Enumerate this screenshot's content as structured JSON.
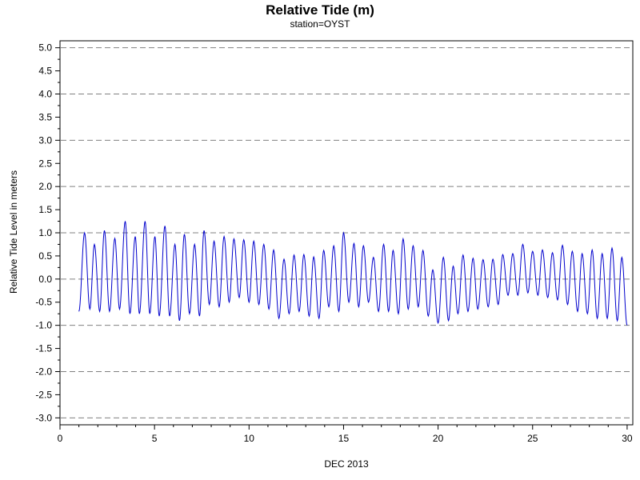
{
  "chart_data": {
    "type": "line",
    "title": "Relative Tide (m)",
    "subtitle": "station=OYST",
    "xlabel": "DEC 2013",
    "ylabel": "Relative Tide Level in meters",
    "xlim": [
      0,
      30.3
    ],
    "ylim": [
      -3.15,
      5.15
    ],
    "x_ticks": [
      0,
      5,
      10,
      15,
      20,
      25,
      30
    ],
    "x_tick_labels": [
      "0",
      "5",
      "10",
      "15",
      "20",
      "25",
      "30"
    ],
    "y_ticks": [
      5.0,
      4.5,
      4.0,
      3.5,
      3.0,
      2.5,
      2.0,
      1.5,
      1.0,
      0.5,
      0.0,
      -0.5,
      -1.0,
      -1.5,
      -2.0,
      -2.5,
      -3.0
    ],
    "y_tick_labels": [
      "5.0",
      "4.5",
      "4.0",
      "3.5",
      "3.0",
      "2.5",
      "2.0",
      "1.5",
      "1.0",
      "0.5",
      "0.0",
      "-0.5",
      "-1.0",
      "-1.5",
      "-2.0",
      "-2.5",
      "-3.0"
    ],
    "gridlines_at": [
      5.0,
      4.0,
      3.0,
      2.0,
      1.0,
      0.0,
      -1.0,
      -2.0,
      -3.0
    ],
    "grid": "dashed horizontal",
    "legend": "none",
    "series": [
      {
        "color": "#0000cc",
        "x": [
          1.0,
          1.3,
          1.58,
          1.82,
          2.1,
          2.35,
          2.62,
          2.9,
          3.15,
          3.45,
          3.7,
          3.98,
          4.2,
          4.5,
          4.75,
          5.02,
          5.25,
          5.55,
          5.8,
          6.08,
          6.32,
          6.58,
          6.85,
          7.12,
          7.38,
          7.62,
          7.9,
          8.15,
          8.42,
          8.68,
          8.95,
          9.2,
          9.48,
          9.72,
          10.0,
          10.25,
          10.52,
          10.78,
          11.05,
          11.3,
          11.58,
          11.85,
          12.12,
          12.38,
          12.65,
          12.9,
          13.18,
          13.42,
          13.7,
          13.95,
          14.22,
          14.48,
          14.75,
          15.0,
          15.28,
          15.55,
          15.8,
          16.05,
          16.32,
          16.58,
          16.85,
          17.12,
          17.38,
          17.62,
          17.9,
          18.15,
          18.42,
          18.68,
          18.95,
          19.2,
          19.48,
          19.72,
          20.0,
          20.28,
          20.55,
          20.8,
          21.05,
          21.32,
          21.58,
          21.85,
          22.1,
          22.38,
          22.65,
          22.9,
          23.18,
          23.42,
          23.7,
          23.95,
          24.22,
          24.48,
          24.75,
          25.0,
          25.28,
          25.52,
          25.8,
          26.05,
          26.32,
          26.58,
          26.85,
          27.1,
          27.38,
          27.62,
          27.9,
          28.15,
          28.42,
          28.68,
          28.95,
          29.2,
          29.48,
          29.72,
          30.0
        ],
        "y": [
          -0.7,
          1.0,
          -0.65,
          0.75,
          -0.7,
          1.05,
          -0.7,
          0.88,
          -0.65,
          1.25,
          -0.75,
          0.92,
          -0.75,
          1.25,
          -0.75,
          0.92,
          -0.8,
          1.15,
          -0.8,
          0.75,
          -0.9,
          0.97,
          -0.75,
          0.75,
          -0.8,
          1.05,
          -0.55,
          0.82,
          -0.6,
          0.92,
          -0.5,
          0.87,
          -0.4,
          0.85,
          -0.5,
          0.82,
          -0.55,
          0.75,
          -0.65,
          0.63,
          -0.85,
          0.43,
          -0.75,
          0.52,
          -0.7,
          0.53,
          -0.8,
          0.48,
          -0.85,
          0.62,
          -0.6,
          0.72,
          -0.7,
          1.0,
          -0.5,
          0.77,
          -0.6,
          0.72,
          -0.5,
          0.47,
          -0.7,
          0.75,
          -0.7,
          0.62,
          -0.75,
          0.87,
          -0.65,
          0.72,
          -0.6,
          0.62,
          -0.8,
          0.2,
          -0.95,
          0.47,
          -0.9,
          0.28,
          -0.75,
          0.52,
          -0.7,
          0.45,
          -0.65,
          0.42,
          -0.6,
          0.43,
          -0.55,
          0.53,
          -0.35,
          0.55,
          -0.35,
          0.75,
          -0.3,
          0.6,
          -0.35,
          0.63,
          -0.4,
          0.57,
          -0.45,
          0.73,
          -0.55,
          0.6,
          -0.7,
          0.55,
          -0.75,
          0.63,
          -0.85,
          0.55,
          -0.85,
          0.67,
          -0.9,
          0.47,
          -1.0
        ]
      }
    ]
  }
}
